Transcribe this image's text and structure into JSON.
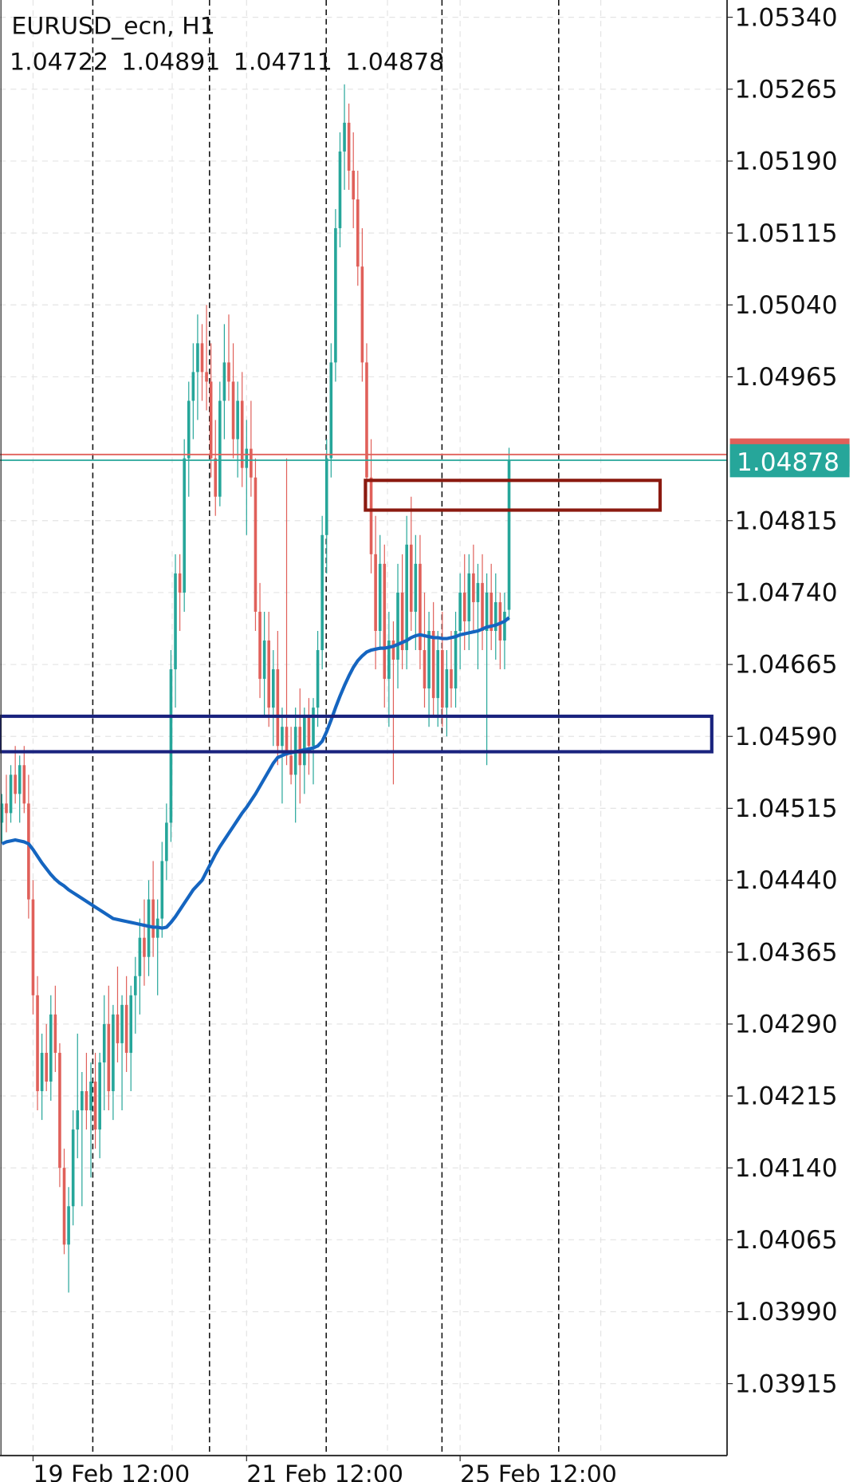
{
  "chart_data": {
    "type": "candlestick",
    "title": "EURUSD_ecn, H1",
    "ohlc": [
      1.04722,
      1.04891,
      1.04711,
      1.04878
    ],
    "up_color": "#26a69a",
    "down_color": "#e0605a",
    "categories": [
      null,
      null,
      null,
      null,
      null,
      null,
      null,
      "19 Feb 12:00",
      null,
      null,
      null,
      null,
      null,
      null,
      null,
      null,
      null,
      null,
      null,
      null,
      null,
      null,
      null,
      null,
      null,
      null,
      null,
      null,
      null,
      null,
      null,
      null,
      null,
      null,
      null,
      null,
      null,
      null,
      null,
      null,
      null,
      null,
      null,
      null,
      null,
      null,
      null,
      null,
      null,
      null,
      null,
      null,
      null,
      null,
      null,
      "21 Feb 12:00",
      null,
      null,
      null,
      null,
      null,
      null,
      null,
      null,
      null,
      null,
      null,
      null,
      null,
      null,
      null,
      null,
      null,
      null,
      null,
      null,
      null,
      null,
      null,
      null,
      null,
      null,
      null,
      null,
      null,
      null,
      null,
      null,
      null,
      null,
      null,
      null,
      null,
      null,
      null,
      null,
      null,
      null,
      null,
      null,
      null,
      null,
      null,
      "25 Feb 12:00",
      null,
      null,
      null,
      null,
      null,
      null,
      null,
      null,
      null,
      null,
      null
    ],
    "candles": [
      [
        1.045,
        1.0453,
        1.0448,
        1.0452
      ],
      [
        1.0452,
        1.0455,
        1.0449,
        1.0451
      ],
      [
        1.0451,
        1.0456,
        1.045,
        1.0455
      ],
      [
        1.0455,
        1.0458,
        1.0452,
        1.0453
      ],
      [
        1.0453,
        1.0457,
        1.045,
        1.0456
      ],
      [
        1.0456,
        1.0458,
        1.0451,
        1.0452
      ],
      [
        1.0452,
        1.0455,
        1.044,
        1.0442
      ],
      [
        1.0442,
        1.0444,
        1.043,
        1.0432
      ],
      [
        1.0432,
        1.0434,
        1.042,
        1.0422
      ],
      [
        1.0422,
        1.0428,
        1.0419,
        1.0426
      ],
      [
        1.0426,
        1.0429,
        1.0422,
        1.0423
      ],
      [
        1.0423,
        1.0432,
        1.0421,
        1.043
      ],
      [
        1.043,
        1.0433,
        1.0424,
        1.0426
      ],
      [
        1.0426,
        1.0427,
        1.0412,
        1.0414
      ],
      [
        1.0414,
        1.0416,
        1.0405,
        1.0406
      ],
      [
        1.0406,
        1.0412,
        1.0401,
        1.041
      ],
      [
        1.041,
        1.042,
        1.0408,
        1.0418
      ],
      [
        1.0418,
        1.0428,
        1.0415,
        1.042
      ],
      [
        1.042,
        1.0424,
        1.041,
        1.0422
      ],
      [
        1.0422,
        1.0426,
        1.0418,
        1.042
      ],
      [
        1.042,
        1.0425,
        1.0413,
        1.0423
      ],
      [
        1.0423,
        1.0426,
        1.0416,
        1.0418
      ],
      [
        1.0418,
        1.0426,
        1.0415,
        1.0425
      ],
      [
        1.0425,
        1.0432,
        1.042,
        1.0429
      ],
      [
        1.0429,
        1.0433,
        1.042,
        1.0422
      ],
      [
        1.0422,
        1.0431,
        1.0419,
        1.043
      ],
      [
        1.043,
        1.0435,
        1.0425,
        1.0427
      ],
      [
        1.0427,
        1.0432,
        1.042,
        1.0431
      ],
      [
        1.0431,
        1.0434,
        1.0424,
        1.0426
      ],
      [
        1.0426,
        1.0433,
        1.0422,
        1.0432
      ],
      [
        1.0432,
        1.0436,
        1.0428,
        1.0434
      ],
      [
        1.0434,
        1.044,
        1.043,
        1.0438
      ],
      [
        1.0438,
        1.0442,
        1.0433,
        1.0436
      ],
      [
        1.0436,
        1.0444,
        1.0434,
        1.0442
      ],
      [
        1.0442,
        1.0446,
        1.0436,
        1.0438
      ],
      [
        1.0438,
        1.0442,
        1.0432,
        1.044
      ],
      [
        1.044,
        1.0448,
        1.0438,
        1.0446
      ],
      [
        1.0446,
        1.0452,
        1.0444,
        1.045
      ],
      [
        1.045,
        1.0468,
        1.0448,
        1.0466
      ],
      [
        1.0466,
        1.0478,
        1.0462,
        1.0476
      ],
      [
        1.0476,
        1.0478,
        1.047,
        1.0474
      ],
      [
        1.0474,
        1.049,
        1.0472,
        1.0488
      ],
      [
        1.0488,
        1.0496,
        1.0484,
        1.0494
      ],
      [
        1.0494,
        1.05,
        1.049,
        1.0497
      ],
      [
        1.0497,
        1.0503,
        1.0492,
        1.05
      ],
      [
        1.05,
        1.0502,
        1.0494,
        1.0497
      ],
      [
        1.0497,
        1.0504,
        1.0493,
        1.0496
      ],
      [
        1.0496,
        1.05,
        1.0486,
        1.0488
      ],
      [
        1.0488,
        1.0492,
        1.0482,
        1.0484
      ],
      [
        1.0484,
        1.0496,
        1.0483,
        1.0494
      ],
      [
        1.0494,
        1.0502,
        1.049,
        1.0498
      ],
      [
        1.0498,
        1.0503,
        1.0494,
        1.0496
      ],
      [
        1.0496,
        1.05,
        1.0488,
        1.049
      ],
      [
        1.049,
        1.0496,
        1.0486,
        1.0494
      ],
      [
        1.0494,
        1.0497,
        1.0485,
        1.0487
      ],
      [
        1.0487,
        1.0492,
        1.048,
        1.0489
      ],
      [
        1.0489,
        1.0494,
        1.0484,
        1.0486
      ],
      [
        1.0486,
        1.0488,
        1.047,
        1.0472
      ],
      [
        1.0472,
        1.0475,
        1.0463,
        1.0465
      ],
      [
        1.0465,
        1.0472,
        1.0461,
        1.0469
      ],
      [
        1.0469,
        1.0472,
        1.046,
        1.0462
      ],
      [
        1.0462,
        1.0468,
        1.0458,
        1.0466
      ],
      [
        1.0466,
        1.047,
        1.0456,
        1.0458
      ],
      [
        1.0458,
        1.0462,
        1.0452,
        1.046
      ],
      [
        1.046,
        1.0488,
        1.0456,
        1.0457
      ],
      [
        1.0457,
        1.046,
        1.0454,
        1.0455
      ],
      [
        1.0455,
        1.0462,
        1.045,
        1.046
      ],
      [
        1.046,
        1.0464,
        1.0452,
        1.0456
      ],
      [
        1.0456,
        1.0462,
        1.0453,
        1.0461
      ],
      [
        1.0461,
        1.0463,
        1.0455,
        1.0458
      ],
      [
        1.0458,
        1.0463,
        1.0454,
        1.0462
      ],
      [
        1.0462,
        1.047,
        1.046,
        1.0468
      ],
      [
        1.0468,
        1.0482,
        1.0466,
        1.048
      ],
      [
        1.048,
        1.049,
        1.0476,
        1.0488
      ],
      [
        1.0488,
        1.05,
        1.0486,
        1.0498
      ],
      [
        1.0498,
        1.0514,
        1.0496,
        1.0512
      ],
      [
        1.0512,
        1.0522,
        1.051,
        1.052
      ],
      [
        1.052,
        1.0527,
        1.0516,
        1.0523
      ],
      [
        1.0523,
        1.0525,
        1.0516,
        1.0518
      ],
      [
        1.0518,
        1.0522,
        1.0512,
        1.0515
      ],
      [
        1.0515,
        1.0518,
        1.0506,
        1.0508
      ],
      [
        1.0508,
        1.0512,
        1.0496,
        1.0498
      ],
      [
        1.0498,
        1.05,
        1.0484,
        1.0486
      ],
      [
        1.0486,
        1.049,
        1.0476,
        1.0478
      ],
      [
        1.0478,
        1.0482,
        1.0466,
        1.047
      ],
      [
        1.047,
        1.048,
        1.0468,
        1.0477
      ],
      [
        1.0477,
        1.0479,
        1.0462,
        1.0465
      ],
      [
        1.0465,
        1.0472,
        1.046,
        1.0469
      ],
      [
        1.0469,
        1.0471,
        1.0454,
        1.0467
      ],
      [
        1.0467,
        1.0477,
        1.0464,
        1.0474
      ],
      [
        1.0474,
        1.0478,
        1.0466,
        1.0468
      ],
      [
        1.0468,
        1.0482,
        1.0466,
        1.0479
      ],
      [
        1.0479,
        1.0484,
        1.047,
        1.0472
      ],
      [
        1.0472,
        1.048,
        1.0468,
        1.0477
      ],
      [
        1.0477,
        1.048,
        1.0466,
        1.0468
      ],
      [
        1.0468,
        1.0474,
        1.0462,
        1.0464
      ],
      [
        1.0464,
        1.0472,
        1.046,
        1.047
      ],
      [
        1.047,
        1.0473,
        1.0461,
        1.0463
      ],
      [
        1.0463,
        1.047,
        1.046,
        1.0468
      ],
      [
        1.0468,
        1.0472,
        1.046,
        1.0462
      ],
      [
        1.0462,
        1.0468,
        1.0459,
        1.0466
      ],
      [
        1.0466,
        1.047,
        1.0462,
        1.0464
      ],
      [
        1.0464,
        1.0472,
        1.0462,
        1.047
      ],
      [
        1.047,
        1.0476,
        1.0466,
        1.0474
      ],
      [
        1.0474,
        1.0478,
        1.0468,
        1.0471
      ],
      [
        1.0471,
        1.0478,
        1.0468,
        1.0476
      ],
      [
        1.0476,
        1.0479,
        1.047,
        1.0473
      ],
      [
        1.0473,
        1.0477,
        1.0466,
        1.0475
      ],
      [
        1.0475,
        1.0478,
        1.0468,
        1.047
      ],
      [
        1.047,
        1.0476,
        1.0456,
        1.0474
      ],
      [
        1.0474,
        1.0477,
        1.0468,
        1.047
      ],
      [
        1.047,
        1.0476,
        1.0467,
        1.0473
      ],
      [
        1.0473,
        1.0474,
        1.0466,
        1.0469
      ],
      [
        1.0469,
        1.0474,
        1.0466,
        1.0472
      ],
      [
        1.04722,
        1.04891,
        1.04711,
        1.04878
      ]
    ],
    "ma": {
      "color": "#1565c0",
      "values": [
        1.04478,
        1.0448,
        1.04481,
        1.04482,
        1.04481,
        1.0448,
        1.04478,
        1.04472,
        1.04465,
        1.04458,
        1.04452,
        1.04446,
        1.04441,
        1.04437,
        1.04434,
        1.0443,
        1.04427,
        1.04424,
        1.04421,
        1.04418,
        1.04415,
        1.04412,
        1.04409,
        1.04406,
        1.04403,
        1.044,
        1.04399,
        1.04398,
        1.04397,
        1.04396,
        1.04395,
        1.04394,
        1.04393,
        1.04392,
        1.04391,
        1.04391,
        1.0439,
        1.04391,
        1.04396,
        1.04402,
        1.04409,
        1.04416,
        1.04423,
        1.0443,
        1.04435,
        1.0444,
        1.04449,
        1.04458,
        1.04467,
        1.04475,
        1.04482,
        1.04489,
        1.04496,
        1.04503,
        1.0451,
        1.04516,
        1.04523,
        1.0453,
        1.04538,
        1.04546,
        1.04554,
        1.04562,
        1.04568,
        1.0457,
        1.04572,
        1.04573,
        1.04574,
        1.04575,
        1.04576,
        1.04577,
        1.04578,
        1.0458,
        1.04585,
        1.04595,
        1.04607,
        1.0462,
        1.04632,
        1.04643,
        1.04653,
        1.04662,
        1.04669,
        1.04674,
        1.04678,
        1.0468,
        1.04681,
        1.04682,
        1.04682,
        1.04683,
        1.04684,
        1.04686,
        1.04688,
        1.0469,
        1.04693,
        1.04695,
        1.04696,
        1.04695,
        1.04694,
        1.04693,
        1.04693,
        1.04692,
        1.04692,
        1.04693,
        1.04694,
        1.04696,
        1.04697,
        1.04698,
        1.04699,
        1.047,
        1.04702,
        1.04704,
        1.04705,
        1.04706,
        1.04708,
        1.0471,
        1.04714
      ]
    },
    "last_price": 1.04878,
    "last_price_color": "#26a69a",
    "price_lines": [
      {
        "value": 1.04884,
        "color": "#e0605a"
      },
      {
        "value": 1.04878,
        "color": "#26a69a"
      }
    ],
    "rectangles": [
      {
        "low": 1.04826,
        "high": 1.04857,
        "color": "#8b1a10"
      },
      {
        "low": 1.04574,
        "high": 1.04611,
        "color": "#1a237e"
      }
    ],
    "ylim": [
      1.0384,
      1.05358
    ],
    "yticks": [
      {
        "value": 1.03915,
        "label": "1.03915"
      },
      {
        "value": 1.0399,
        "label": "1.03990"
      },
      {
        "value": 1.04065,
        "label": "1.04065"
      },
      {
        "value": 1.0414,
        "label": "1.04140"
      },
      {
        "value": 1.04215,
        "label": "1.04215"
      },
      {
        "value": 1.0429,
        "label": "1.04290"
      },
      {
        "value": 1.04365,
        "label": "1.04365"
      },
      {
        "value": 1.0444,
        "label": "1.04440"
      },
      {
        "value": 1.04515,
        "label": "1.04515"
      },
      {
        "value": 1.0459,
        "label": "1.04590"
      },
      {
        "value": 1.04665,
        "label": "1.04665"
      },
      {
        "value": 1.0474,
        "label": "1.04740"
      },
      {
        "value": 1.04815,
        "label": "1.04815"
      },
      {
        "value": 1.04965,
        "label": "1.04965"
      },
      {
        "value": 1.0504,
        "label": "1.05040"
      },
      {
        "value": 1.05115,
        "label": "1.05115"
      },
      {
        "value": 1.0519,
        "label": "1.05190"
      },
      {
        "value": 1.05265,
        "label": "1.05265"
      },
      {
        "value": 1.0534,
        "label": "1.05340"
      }
    ],
    "grid": true
  }
}
